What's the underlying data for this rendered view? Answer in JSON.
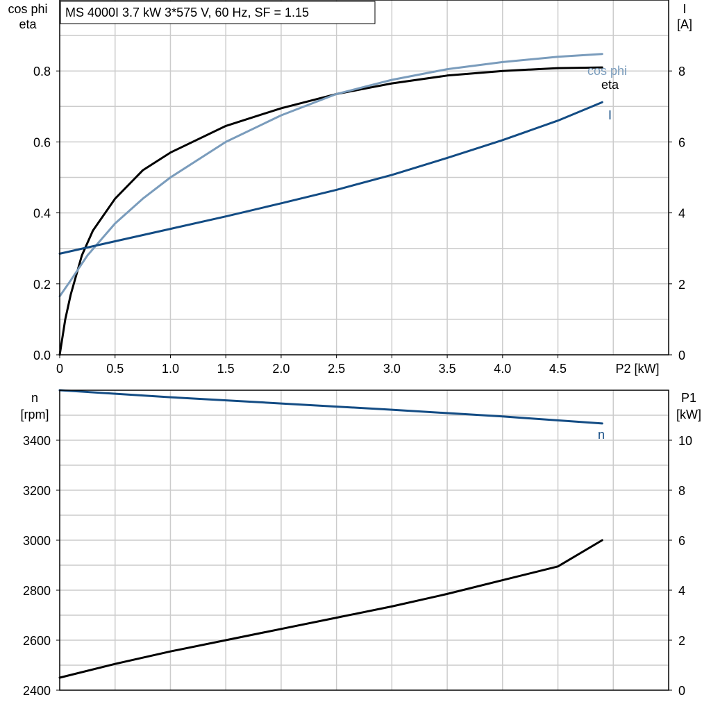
{
  "title": "MS 4000I   3.7 kW   3*575 V, 60 Hz, SF = 1.15",
  "colors": {
    "eta": "#000000",
    "cos_phi": "#7a9cbc",
    "I": "#134c84",
    "n": "#134c84",
    "P1": "#000000",
    "grid": "#cccccc",
    "axis": "#000000"
  },
  "chart_data": [
    {
      "type": "line",
      "x": {
        "label": "P2 [kW]",
        "lim": [
          0,
          5.5
        ],
        "ticks": [
          "0",
          "0.5",
          "1.0",
          "1.5",
          "2.0",
          "2.5",
          "3.0",
          "3.5",
          "4.0",
          "4.5"
        ]
      },
      "y_left": {
        "label_line1": "cos phi",
        "label_line2": "eta",
        "lim": [
          0,
          1.0
        ],
        "ticks": [
          "0.0",
          "0.2",
          "0.4",
          "0.6",
          "0.8"
        ]
      },
      "y_right": {
        "label_line1": "I",
        "label_line2": "[A]",
        "lim": [
          0,
          10
        ],
        "ticks": [
          "0",
          "2",
          "4",
          "6",
          "8"
        ]
      },
      "grid": true,
      "series": [
        {
          "name": "eta",
          "axis": "left",
          "x": [
            0,
            0.05,
            0.1,
            0.2,
            0.3,
            0.5,
            0.75,
            1.0,
            1.5,
            2.0,
            2.5,
            3.0,
            3.5,
            4.0,
            4.5,
            4.9
          ],
          "y": [
            0.0,
            0.1,
            0.17,
            0.28,
            0.35,
            0.44,
            0.52,
            0.57,
            0.645,
            0.695,
            0.735,
            0.765,
            0.787,
            0.8,
            0.808,
            0.81
          ]
        },
        {
          "name": "cos phi",
          "axis": "left",
          "x": [
            0,
            0.1,
            0.25,
            0.5,
            0.75,
            1.0,
            1.5,
            2.0,
            2.5,
            3.0,
            3.5,
            4.0,
            4.5,
            4.9
          ],
          "y": [
            0.165,
            0.21,
            0.28,
            0.37,
            0.44,
            0.5,
            0.6,
            0.675,
            0.735,
            0.775,
            0.805,
            0.825,
            0.84,
            0.848
          ]
        },
        {
          "name": "I",
          "axis": "right",
          "x": [
            0,
            0.5,
            1.0,
            1.5,
            2.0,
            2.5,
            3.0,
            3.5,
            4.0,
            4.5,
            4.9
          ],
          "y": [
            2.85,
            3.2,
            3.55,
            3.9,
            4.27,
            4.65,
            5.07,
            5.55,
            6.05,
            6.6,
            7.12
          ]
        }
      ]
    },
    {
      "type": "line",
      "x": {
        "lim": [
          0,
          5.5
        ]
      },
      "y_left": {
        "label_line1": "n",
        "label_line2": "[rpm]",
        "lim": [
          2400,
          3600
        ],
        "ticks": [
          "2400",
          "2600",
          "2800",
          "3000",
          "3200",
          "3400"
        ]
      },
      "y_right": {
        "label_line1": "P1",
        "label_line2": "[kW]",
        "lim": [
          0,
          12
        ],
        "ticks": [
          "0",
          "2",
          "4",
          "6",
          "8",
          "10"
        ]
      },
      "grid": true,
      "series": [
        {
          "name": "n",
          "axis": "left",
          "x": [
            0,
            1.0,
            2.0,
            3.0,
            4.0,
            4.9
          ],
          "y": [
            3600,
            3572,
            3547,
            3522,
            3495,
            3467
          ]
        },
        {
          "name": "",
          "axis": "right",
          "x": [
            0,
            0.5,
            1.0,
            1.5,
            2.0,
            2.5,
            3.0,
            3.5,
            4.0,
            4.5,
            4.9
          ],
          "y": [
            0.5,
            1.05,
            1.55,
            2.0,
            2.45,
            2.9,
            3.35,
            3.85,
            4.4,
            4.95,
            6.0
          ]
        }
      ]
    }
  ]
}
